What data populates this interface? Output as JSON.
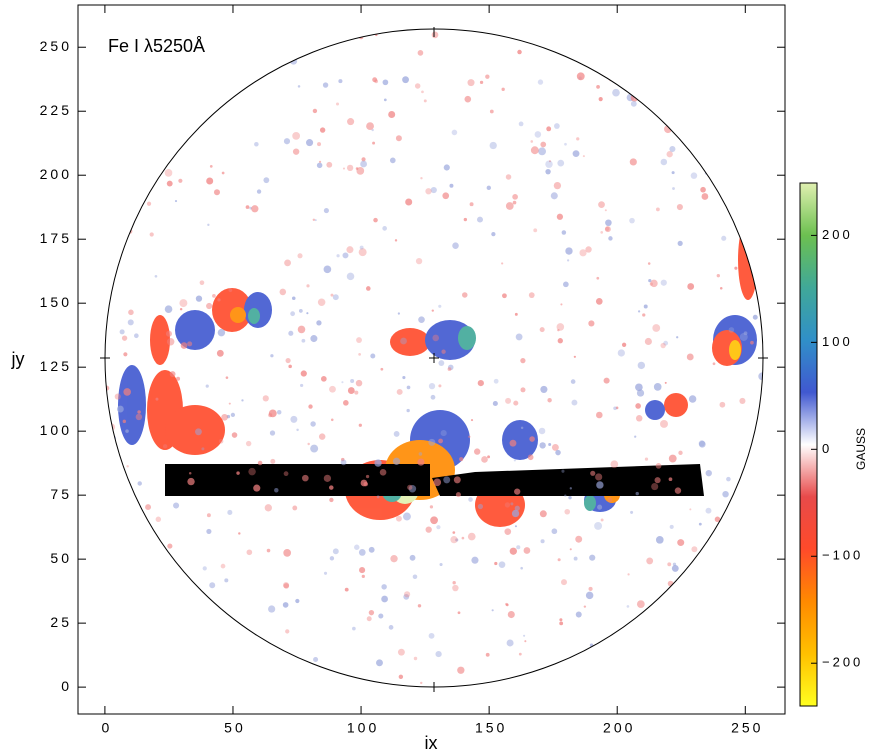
{
  "chart_data": {
    "type": "heatmap",
    "title": "Fe I λ5250Å",
    "x_label": "ix",
    "y_label": "jy",
    "xlim": [
      -10.5,
      265.5
    ],
    "ylim": [
      -10.5,
      266.5
    ],
    "xticks": [
      0,
      50,
      100,
      150,
      200,
      250
    ],
    "yticks": [
      0,
      25,
      50,
      75,
      100,
      125,
      150,
      175,
      200,
      225,
      250
    ],
    "colorbar": {
      "label": "GAUSS",
      "lim": [
        -240,
        249
      ],
      "ticks": [
        {
          "value": -200,
          "label": "−200"
        },
        {
          "value": -100,
          "label": "−100"
        },
        0,
        100,
        200
      ],
      "colors": [
        "#ffff20",
        "#ffc000",
        "#ff8a00",
        "#ff4a2a",
        "#e84a4a",
        "#ffffff",
        "#4058d0",
        "#3090c8",
        "#40a898",
        "#6cc050",
        "#e0f0b0"
      ]
    }
  }
}
